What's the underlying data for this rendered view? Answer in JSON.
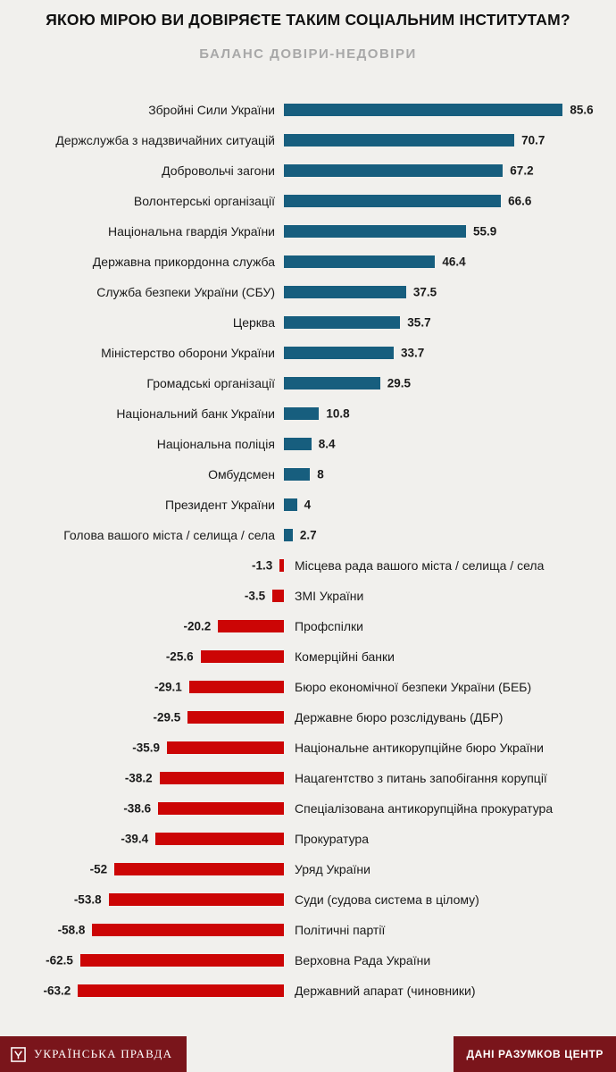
{
  "chart_data": {
    "type": "bar",
    "orientation": "horizontal-diverging",
    "title": "ЯКОЮ МІРОЮ ВИ ДОВІРЯЄТЕ ТАКИМ СОЦІАЛЬНИМ ІНСТИТУТАМ?",
    "subtitle": "БАЛАНС ДОВІРИ-НЕДОВІРИ",
    "xlabel": "",
    "ylabel": "",
    "xlim": [
      -70,
      90
    ],
    "grid": false,
    "legend": false,
    "categories": [
      "Збройні Сили України",
      "Держслужба з надзвичайних ситуацій",
      "Добровольчі загони",
      "Волонтерські організації",
      "Національна гвардія України",
      "Державна прикордонна служба",
      "Служба безпеки України (СБУ)",
      "Церква",
      "Міністерство оборони України",
      "Громадські організації",
      "Національний банк України",
      "Національна поліція",
      "Омбудсмен",
      "Президент України",
      "Голова вашого міста / селища / села",
      "Місцева рада вашого міста / селища / села",
      "ЗМІ України",
      "Профспілки",
      "Комерційні банки",
      "Бюро економічної безпеки України (БЕБ)",
      "Державне бюро розслідувань (ДБР)",
      "Національне антикорупційне бюро України",
      "Нацагентство з питань запобігання корупції",
      "Спеціалізована антикорупційна прокуратура",
      "Прокуратура",
      "Уряд України",
      "Суди (судова система в цілому)",
      "Політичні партії",
      "Верховна Рада України",
      "Державний апарат (чиновники)"
    ],
    "values": [
      85.6,
      70.7,
      67.2,
      66.6,
      55.9,
      46.4,
      37.5,
      35.7,
      33.7,
      29.5,
      10.8,
      8.4,
      8,
      4,
      2.7,
      -1.3,
      -3.5,
      -20.2,
      -25.6,
      -29.1,
      -29.5,
      -35.9,
      -38.2,
      -38.6,
      -39.4,
      -52,
      -53.8,
      -58.8,
      -62.5,
      -63.2
    ],
    "value_labels": [
      "85.6",
      "70.7",
      "67.2",
      "66.6",
      "55.9",
      "46.4",
      "37.5",
      "35.7",
      "33.7",
      "29.5",
      "10.8",
      "8.4",
      "8",
      "4",
      "2.7",
      "-1.3",
      "-3.5",
      "-20.2",
      "-25.6",
      "-29.1",
      "-29.5",
      "-35.9",
      "-38.2",
      "-38.6",
      "-39.4",
      "-52",
      "-53.8",
      "-58.8",
      "-62.5",
      "-63.2"
    ]
  },
  "footer": {
    "left_logo_text": "УКРАЇНСЬКА ПРАВДА",
    "right_text": "ДАНІ РАЗУМКОВ ЦЕНТР"
  },
  "colors": {
    "positive_bar": "#175e7e",
    "negative_bar": "#cc0505",
    "footer_background": "#7a151b",
    "page_background": "#f1f0ed",
    "subtitle_text": "#a8a8a8",
    "title_text": "#101010",
    "label_text": "#1a1a1a"
  }
}
